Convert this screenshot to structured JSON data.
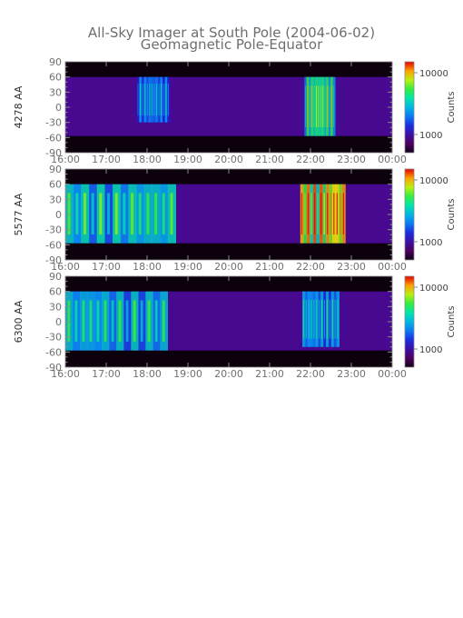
{
  "title": "All-Sky Imager at South Pole (2004-06-02)",
  "subtitle": "Geomagnetic Pole-Equator",
  "chart_data": [
    {
      "type": "heatmap",
      "ylabel": "4278 AA",
      "x_ticks": [
        "16:00",
        "17:00",
        "18:00",
        "19:00",
        "20:00",
        "21:00",
        "22:00",
        "23:00",
        "00:00"
      ],
      "y_ticks": [
        "90",
        "60",
        "30",
        "0",
        "-30",
        "-60",
        "-90"
      ],
      "ylim": [
        -90,
        90
      ],
      "data_band": [
        -57,
        60
      ],
      "colorbar": {
        "label": "Counts",
        "ticks": [
          "10000",
          "1000"
        ],
        "scale": "log"
      },
      "features": [
        {
          "t": [
            17.75,
            18.55
          ],
          "lat": [
            -30,
            60
          ],
          "level": 0.45
        },
        {
          "t": [
            21.85,
            22.6
          ],
          "lat": [
            -57,
            60
          ],
          "level": 0.72
        }
      ]
    },
    {
      "type": "heatmap",
      "ylabel": "5577 AA",
      "x_ticks": [
        "16:00",
        "17:00",
        "18:00",
        "19:00",
        "20:00",
        "21:00",
        "22:00",
        "23:00",
        "00:00"
      ],
      "y_ticks": [
        "90",
        "60",
        "30",
        "0",
        "-30",
        "-60",
        "-90"
      ],
      "ylim": [
        -90,
        90
      ],
      "data_band": [
        -57,
        60
      ],
      "colorbar": {
        "label": "Counts",
        "ticks": [
          "10000",
          "1000"
        ],
        "scale": "log"
      },
      "features": [
        {
          "t": [
            16.0,
            18.7
          ],
          "lat": [
            -57,
            60
          ],
          "level": 0.6
        },
        {
          "t": [
            21.75,
            22.85
          ],
          "lat": [
            -57,
            60
          ],
          "level": 0.95
        }
      ]
    },
    {
      "type": "heatmap",
      "ylabel": "6300 AA",
      "x_ticks": [
        "16:00",
        "17:00",
        "18:00",
        "19:00",
        "20:00",
        "21:00",
        "22:00",
        "23:00",
        "00:00"
      ],
      "y_ticks": [
        "90",
        "60",
        "30",
        "0",
        "-30",
        "-60",
        "-90"
      ],
      "ylim": [
        -90,
        90
      ],
      "data_band": [
        -57,
        60
      ],
      "colorbar": {
        "label": "Counts",
        "ticks": [
          "10000",
          "1000"
        ],
        "scale": "log"
      },
      "features": [
        {
          "t": [
            16.0,
            18.5
          ],
          "lat": [
            -57,
            60
          ],
          "level": 0.55
        },
        {
          "t": [
            21.8,
            22.7
          ],
          "lat": [
            -50,
            60
          ],
          "level": 0.5
        }
      ]
    }
  ]
}
